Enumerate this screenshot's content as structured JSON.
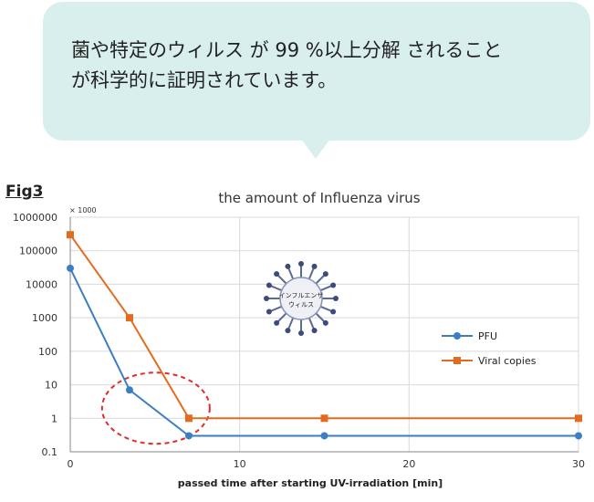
{
  "callout": {
    "line1": "菌や特定のウィルス が 99 %以上分解 されること",
    "line2": "が科学的に証明されています。"
  },
  "figure_label": "Fig3",
  "virus_icon": {
    "line1": "インフルエンザ",
    "line2": "ウィルス"
  },
  "colors": {
    "bubble": "#d8efed",
    "pfu": "#3c7ec3",
    "viral": "#e36b1f",
    "highlight": "#e22c2c",
    "grid": "#d9d9d9"
  },
  "chart_data": {
    "type": "line",
    "title": "the amount of Influenza virus",
    "units_note": "× 1000",
    "xlabel": "passed time after starting UV-irradiation [min]",
    "ylabel": "",
    "yscale": "log",
    "xlim": [
      0,
      30
    ],
    "ylim": [
      0.1,
      1000000
    ],
    "xticks": [
      0,
      10,
      20,
      30
    ],
    "xtick_labels": [
      "0",
      "10",
      "20",
      "30"
    ],
    "yticks": [
      0.1,
      1,
      10,
      100,
      1000,
      10000,
      100000,
      1000000
    ],
    "ytick_labels": [
      "0.1",
      "1",
      "10",
      "100",
      "1000",
      "10000",
      "100000",
      "1000000"
    ],
    "grid": true,
    "legend_position": "right",
    "series": [
      {
        "name": "PFU",
        "color": "#3c7ec3",
        "marker": "circle",
        "x": [
          0,
          3.5,
          7,
          15,
          30
        ],
        "y": [
          30000,
          7,
          0.3,
          0.3,
          0.3
        ]
      },
      {
        "name": "Viral copies",
        "color": "#e36b1f",
        "marker": "square",
        "x": [
          0,
          3.5,
          7,
          15,
          30
        ],
        "y": [
          300000,
          1000,
          1,
          1,
          1
        ]
      }
    ],
    "annotations": [
      {
        "type": "dashed-ellipse",
        "color": "#e22c2c",
        "x": 5,
        "y": 2
      }
    ]
  }
}
